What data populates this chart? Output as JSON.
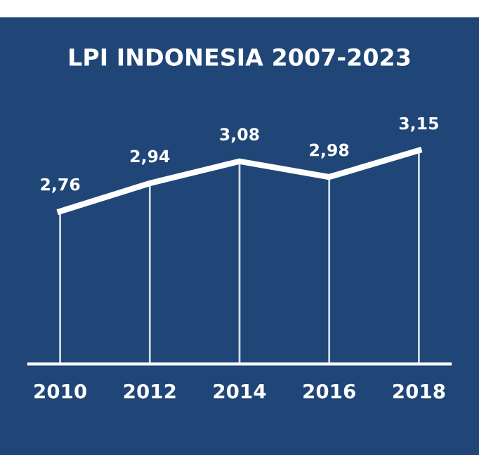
{
  "chart_data": {
    "type": "line",
    "title": "LPI INDONESIA 2007-2023",
    "categories": [
      "2010",
      "2012",
      "2014",
      "2016",
      "2018"
    ],
    "series": [
      {
        "color": "#ffffff",
        "values": [
          2.76,
          2.94,
          3.08,
          2.98,
          3.15
        ],
        "value_labels": [
          "2,76",
          "2,94",
          "3,08",
          "2,98",
          "3,15"
        ]
      }
    ],
    "marker": "none",
    "line_style": "solid",
    "grid": "x",
    "legend": false,
    "tick_labels": "x"
  }
}
